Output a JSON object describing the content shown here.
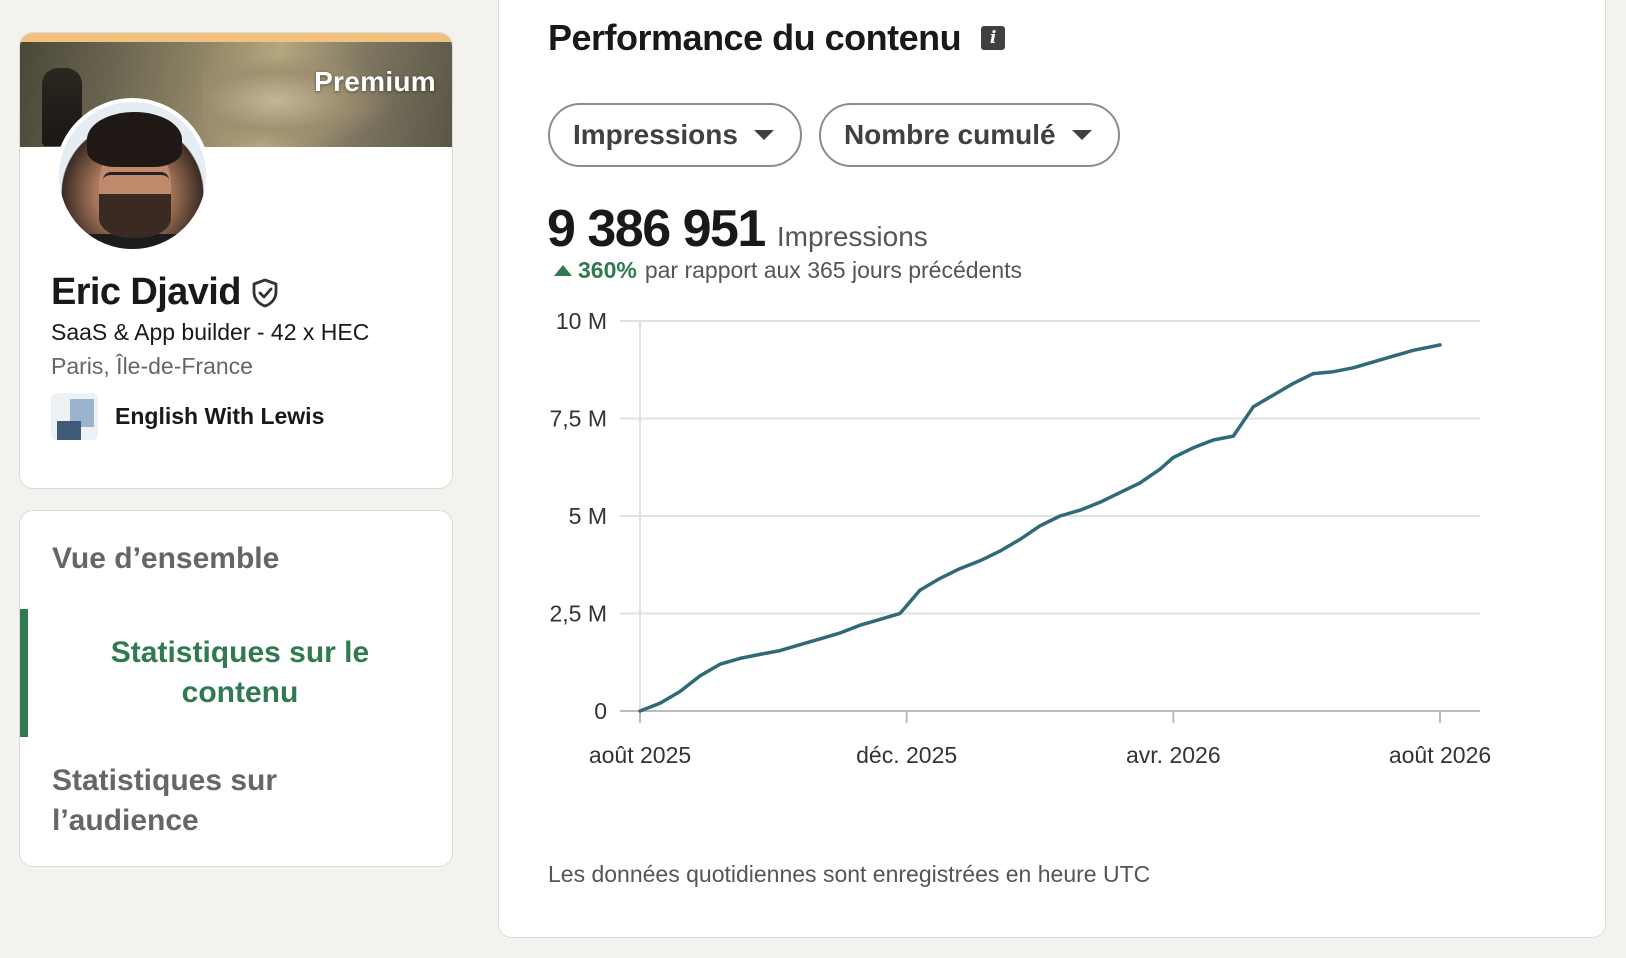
{
  "profile": {
    "premium_label": "Premium",
    "name": "Eric Djavid",
    "headline": "SaaS & App builder - 42 x HEC",
    "location": "Paris, Île-de-France",
    "company": "English With Lewis",
    "verified_icon": "verified-shield-icon"
  },
  "nav": {
    "overview": "Vue d’ensemble",
    "content_stats": "Statistiques sur le contenu",
    "audience_stats": "Statistiques sur l’audience",
    "active_color": "#2f7a50"
  },
  "main": {
    "title": "Performance du contenu",
    "info_icon": "i",
    "filters": {
      "metric": "Impressions",
      "aggregation": "Nombre cumulé"
    },
    "kpi": {
      "value": "9 386 951",
      "label": "Impressions"
    },
    "delta": {
      "value": "360%",
      "text": "par rapport aux 365 jours précédents",
      "color": "#2f7a50"
    },
    "footnote": "Les données quotidiennes sont enregistrées en heure UTC"
  },
  "chart_data": {
    "type": "line",
    "line_color": "#2f6b77",
    "ylim": [
      0,
      10000000
    ],
    "y_ticks": [
      {
        "value": 0,
        "label": "0"
      },
      {
        "value": 2500000,
        "label": "2,5 M"
      },
      {
        "value": 5000000,
        "label": "5 M"
      },
      {
        "value": 7500000,
        "label": "7,5 M"
      },
      {
        "value": 10000000,
        "label": "10 M"
      }
    ],
    "x_ticks": [
      {
        "value": 0,
        "label": "août 2025"
      },
      {
        "value": 4,
        "label": "déc. 2025"
      },
      {
        "value": 8,
        "label": "avr. 2026"
      },
      {
        "value": 12,
        "label": "août 2026"
      }
    ],
    "xlim": [
      0,
      12
    ],
    "grid": true,
    "series": [
      {
        "x": [
          0,
          0.3,
          0.6,
          0.9,
          1.2,
          1.5,
          1.8,
          2.1,
          2.4,
          2.7,
          3.0,
          3.3,
          3.6,
          3.9,
          4.2,
          4.5,
          4.8,
          5.1,
          5.4,
          5.7,
          6.0,
          6.3,
          6.6,
          6.9,
          7.2,
          7.5,
          7.8,
          8.0,
          8.3,
          8.6,
          8.9,
          9.2,
          9.5,
          9.8,
          10.1,
          10.4,
          10.7,
          11.0,
          11.3,
          11.6,
          11.9,
          12.0
        ],
        "y": [
          0,
          200000,
          500000,
          900000,
          1200000,
          1350000,
          1450000,
          1550000,
          1700000,
          1850000,
          2000000,
          2200000,
          2350000,
          2500000,
          3100000,
          3400000,
          3650000,
          3850000,
          4100000,
          4400000,
          4750000,
          5000000,
          5150000,
          5350000,
          5600000,
          5850000,
          6200000,
          6500000,
          6750000,
          6950000,
          7050000,
          7800000,
          8100000,
          8400000,
          8650000,
          8700000,
          8800000,
          8950000,
          9100000,
          9250000,
          9350000,
          9386951
        ]
      }
    ]
  }
}
